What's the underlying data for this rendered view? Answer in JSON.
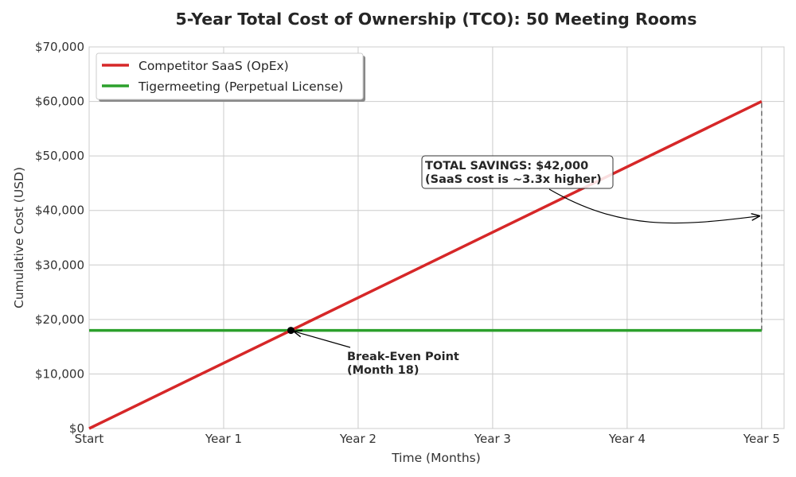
{
  "chart_data": {
    "type": "line",
    "title": "5-Year Total Cost of Ownership (TCO): 50 Meeting Rooms",
    "xlabel": "Time (Months)",
    "ylabel": "Cumulative Cost (USD)",
    "xlim": [
      0,
      62
    ],
    "ylim": [
      0,
      70000
    ],
    "grid": true,
    "legend_position": "top-left",
    "x_ticks": [
      {
        "value": 0,
        "label": "Start"
      },
      {
        "value": 12,
        "label": "Year 1"
      },
      {
        "value": 24,
        "label": "Year 2"
      },
      {
        "value": 36,
        "label": "Year 3"
      },
      {
        "value": 48,
        "label": "Year 4"
      },
      {
        "value": 60,
        "label": "Year 5"
      }
    ],
    "y_ticks": [
      {
        "value": 0,
        "label": "$0"
      },
      {
        "value": 10000,
        "label": "$10,000"
      },
      {
        "value": 20000,
        "label": "$20,000"
      },
      {
        "value": 30000,
        "label": "$30,000"
      },
      {
        "value": 40000,
        "label": "$40,000"
      },
      {
        "value": 50000,
        "label": "$50,000"
      },
      {
        "value": 60000,
        "label": "$60,000"
      },
      {
        "value": 70000,
        "label": "$70,000"
      }
    ],
    "series": [
      {
        "name": "Competitor SaaS (OpEx)",
        "color": "#d62728",
        "x": [
          0,
          60
        ],
        "y": [
          0,
          60000
        ]
      },
      {
        "name": "Tigermeeting (Perpetual License)",
        "color": "#2ca02c",
        "x": [
          0,
          60
        ],
        "y": [
          18000,
          18000
        ]
      }
    ],
    "annotations": [
      {
        "lines": [
          "Break-Even Point",
          "(Month 18)"
        ],
        "point": [
          18,
          18000
        ]
      },
      {
        "lines": [
          "TOTAL SAVINGS: $42,000",
          "(SaaS cost is ~3.3x higher)"
        ],
        "point": [
          60,
          39000
        ]
      }
    ],
    "savings_gap": {
      "x": 60,
      "y_from": 18000,
      "y_to": 60000
    }
  }
}
